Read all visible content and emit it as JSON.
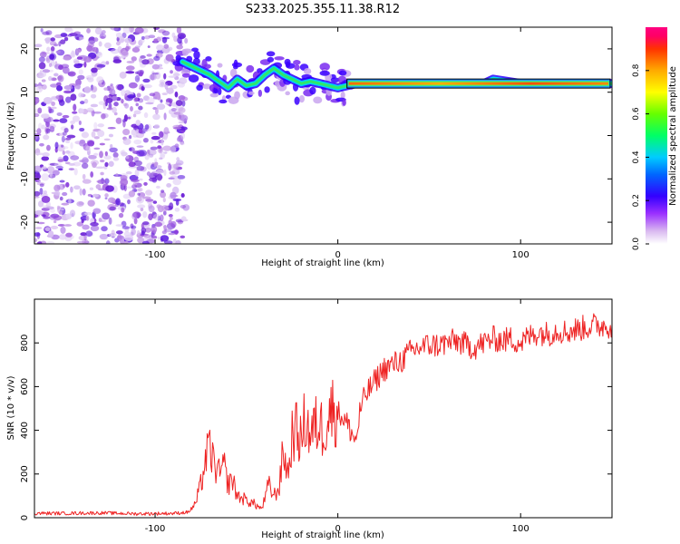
{
  "title": "S233.2025.355.11.38.R12",
  "colors": {
    "snr_line": "#ee2222",
    "frame": "#000000",
    "trace_edge": "#000000"
  },
  "chart_data": [
    {
      "type": "heatmap",
      "title": "S233.2025.355.11.38.R12",
      "xlabel": "Height of straight line (km)",
      "ylabel": "Frequency (Hz)",
      "xlim": [
        -166,
        150
      ],
      "ylim": [
        -25,
        25
      ],
      "xticks": [
        -100,
        0,
        100
      ],
      "xtick_labels": [
        "-100",
        "0",
        "100"
      ],
      "yticks": [
        20,
        10,
        0,
        -10,
        -20
      ],
      "ytick_labels": [
        "20",
        "10",
        "0",
        "-10",
        "-20"
      ],
      "colorbar": {
        "label": "Normalized spectral amplitude",
        "range": [
          0,
          1
        ],
        "ticks": [
          0.0,
          0.2,
          0.4,
          0.6,
          0.8
        ],
        "tick_labels": [
          "0.0",
          "0.2",
          "0.4",
          "0.6",
          "0.8"
        ]
      },
      "noise_region_km": [
        -166,
        -85
      ],
      "frequency_track": {
        "x": [
          -85,
          -80,
          -75,
          -70,
          -65,
          -60,
          -55,
          -50,
          -45,
          -40,
          -35,
          -30,
          -25,
          -20,
          -15,
          -10,
          -5,
          0,
          5,
          10,
          20,
          40,
          60,
          80,
          85,
          100,
          120,
          150
        ],
        "y": [
          17,
          16,
          15,
          14,
          12.5,
          11,
          13,
          11.5,
          12,
          14,
          15.5,
          14,
          13,
          12,
          12.5,
          12,
          11.5,
          11,
          11.5,
          12,
          12,
          12,
          12,
          12,
          13,
          12,
          12,
          12
        ]
      }
    },
    {
      "type": "line",
      "xlabel": "Height of straight line (km)",
      "ylabel": "SNR (10 * v/v)",
      "xlim": [
        -166,
        150
      ],
      "ylim": [
        0,
        1000
      ],
      "xticks": [
        -100,
        0,
        100
      ],
      "xtick_labels": [
        "-100",
        "0",
        "100"
      ],
      "yticks": [
        0,
        200,
        400,
        600,
        800
      ],
      "ytick_labels": [
        "0",
        "200",
        "400",
        "600",
        "800"
      ],
      "series": [
        {
          "name": "SNR",
          "x": [
            -166,
            -150,
            -130,
            -110,
            -90,
            -82,
            -78,
            -75,
            -72,
            -70,
            -68,
            -65,
            -62,
            -60,
            -58,
            -55,
            -50,
            -45,
            -42,
            -40,
            -38,
            -35,
            -32,
            -30,
            -27,
            -25,
            -23,
            -20,
            -18,
            -15,
            -12,
            -10,
            -8,
            -5,
            -2,
            0,
            2,
            5,
            8,
            10,
            12,
            15,
            20,
            25,
            30,
            35,
            40,
            45,
            50,
            55,
            60,
            65,
            70,
            75,
            80,
            85,
            90,
            95,
            100,
            105,
            110,
            115,
            120,
            125,
            130,
            135,
            140,
            145,
            150
          ],
          "y": [
            20,
            20,
            22,
            18,
            20,
            25,
            60,
            150,
            280,
            320,
            250,
            200,
            230,
            150,
            180,
            100,
            80,
            60,
            40,
            80,
            150,
            100,
            140,
            300,
            200,
            380,
            400,
            350,
            450,
            380,
            420,
            430,
            400,
            480,
            500,
            480,
            470,
            430,
            380,
            350,
            480,
            560,
            620,
            680,
            700,
            720,
            760,
            780,
            790,
            790,
            800,
            810,
            790,
            780,
            800,
            820,
            810,
            820,
            800,
            830,
            850,
            840,
            860,
            850,
            860,
            870,
            880,
            880,
            880
          ]
        }
      ]
    }
  ]
}
